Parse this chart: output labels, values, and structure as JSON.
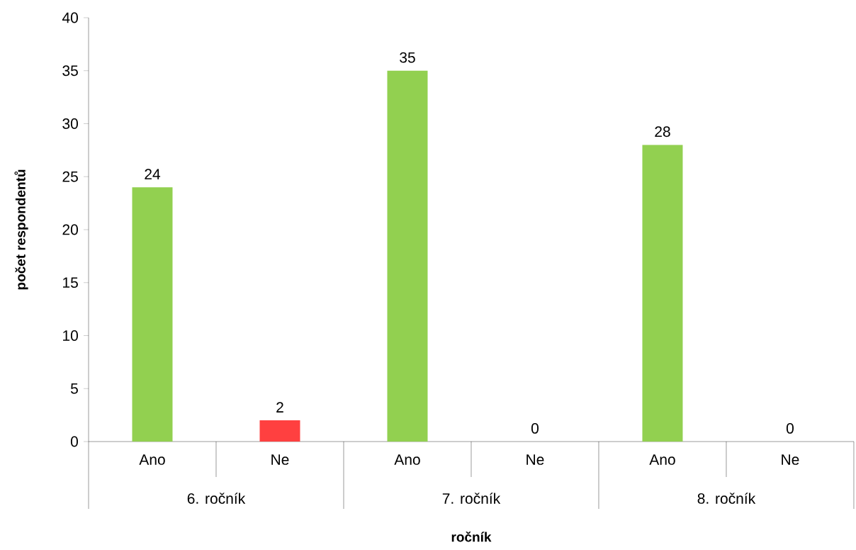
{
  "chart_data": {
    "type": "bar",
    "xlabel": "ročník",
    "ylabel": "počet respondentů",
    "categories": [
      "Ano",
      "Ne",
      "Ano",
      "Ne",
      "Ano",
      "Ne"
    ],
    "values": [
      24,
      2,
      35,
      0,
      28,
      0
    ],
    "colors": [
      "#92d050",
      "#ff4040",
      "#92d050",
      "#ff4040",
      "#92d050",
      "#ff4040"
    ],
    "ylim": [
      0,
      40
    ],
    "yticks": [
      0,
      5,
      10,
      15,
      20,
      25,
      30,
      35,
      40
    ],
    "data_labels": true,
    "annotations": [
      "6. ročník",
      "7. ročník",
      "8. ročník"
    ]
  }
}
